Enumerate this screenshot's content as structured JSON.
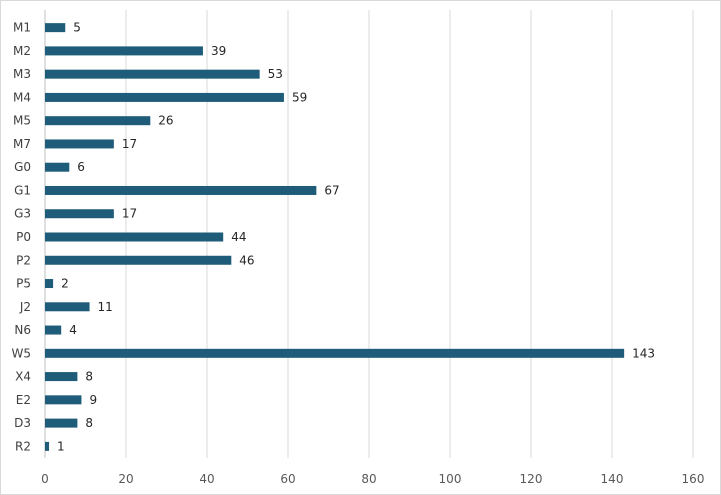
{
  "chart_data": {
    "type": "bar",
    "orientation": "horizontal",
    "categories": [
      "M1",
      "M2",
      "M3",
      "M4",
      "M5",
      "M7",
      "G0",
      "G1",
      "G3",
      "P0",
      "P2",
      "P5",
      "J2",
      "N6",
      "W5",
      "X4",
      "E2",
      "D3",
      "R2"
    ],
    "values": [
      5,
      39,
      53,
      59,
      26,
      17,
      6,
      67,
      17,
      44,
      46,
      2,
      11,
      4,
      143,
      8,
      9,
      8,
      1
    ],
    "xlim": [
      0,
      160
    ],
    "xticks": [
      0,
      20,
      40,
      60,
      80,
      100,
      120,
      140,
      160
    ],
    "title": "",
    "xlabel": "",
    "ylabel": "",
    "grid": "vertical",
    "legend": "none",
    "bar_color": "#1f5c7a"
  }
}
